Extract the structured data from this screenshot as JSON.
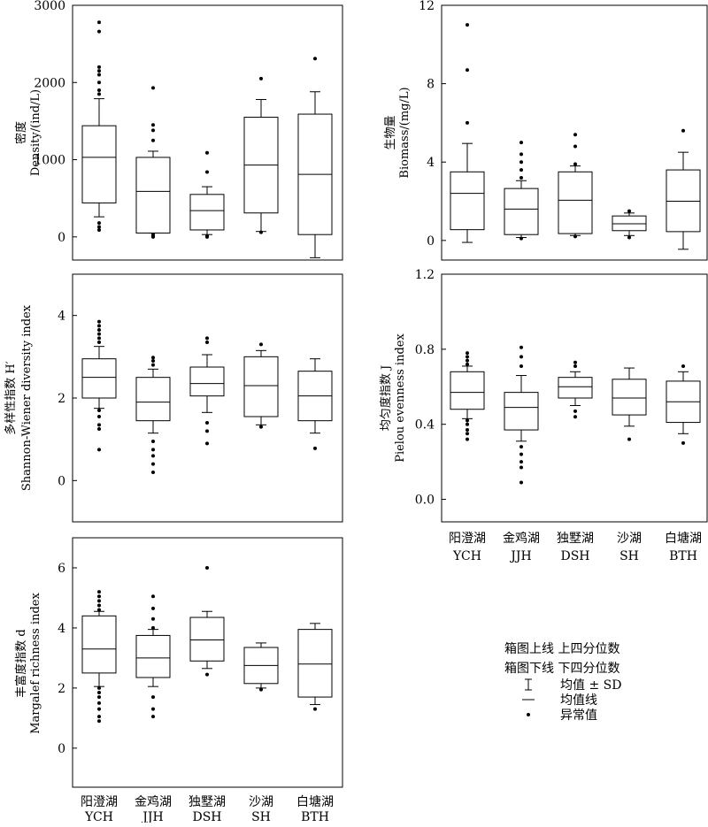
{
  "chart_data": [
    {
      "type": "boxplot",
      "id": "density",
      "ylabel_cn": "密度",
      "ylabel_en": "Density/(ind/L)",
      "ylim": [
        -300,
        3000
      ],
      "yticks": [
        "0",
        "1000",
        "2000",
        "3000"
      ],
      "ytick_values": [
        0,
        1000,
        2000,
        3000
      ],
      "categories": [
        "YCH",
        "JJH",
        "DSH",
        "SH",
        "BTH"
      ],
      "boxes": [
        {
          "q1": 440,
          "median": 1030,
          "q3": 1440,
          "lo": 260,
          "hi": 1790,
          "outliers": [
            90,
            130,
            180,
            1850,
            1900,
            2000,
            2100,
            2150,
            2200,
            2660,
            2780
          ]
        },
        {
          "q1": 50,
          "median": 590,
          "q3": 1030,
          "lo": 50,
          "hi": 1110,
          "outliers": [
            0,
            10,
            30,
            1250,
            1380,
            1450,
            1930
          ]
        },
        {
          "q1": 90,
          "median": 340,
          "q3": 550,
          "lo": 30,
          "hi": 650,
          "outliers": [
            0,
            10,
            840,
            1090
          ]
        },
        {
          "q1": 310,
          "median": 930,
          "q3": 1550,
          "lo": 70,
          "hi": 1780,
          "outliers": [
            60,
            2050
          ]
        },
        {
          "q1": 30,
          "median": 810,
          "q3": 1590,
          "lo": -270,
          "hi": 1880,
          "outliers": [
            2310
          ]
        }
      ]
    },
    {
      "type": "boxplot",
      "id": "biomass",
      "ylabel_cn": "生物量",
      "ylabel_en": "Biomass/(mg/L)",
      "ylim": [
        -1,
        12
      ],
      "yticks": [
        "0",
        "4",
        "8",
        "12"
      ],
      "ytick_values": [
        0,
        4,
        8,
        12
      ],
      "categories": [
        "YCH",
        "JJH",
        "DSH",
        "SH",
        "BTH"
      ],
      "boxes": [
        {
          "q1": 0.55,
          "median": 2.4,
          "q3": 3.5,
          "lo": -0.1,
          "hi": 4.95,
          "outliers": [
            6.0,
            8.7,
            11.0
          ]
        },
        {
          "q1": 0.3,
          "median": 1.6,
          "q3": 2.65,
          "lo": 0.15,
          "hi": 3.05,
          "outliers": [
            0.1,
            3.2,
            3.6,
            4.0,
            4.4,
            5.0
          ]
        },
        {
          "q1": 0.35,
          "median": 2.05,
          "q3": 3.5,
          "lo": 0.25,
          "hi": 3.8,
          "outliers": [
            0.2,
            3.9,
            4.8,
            5.4
          ]
        },
        {
          "q1": 0.5,
          "median": 0.85,
          "q3": 1.25,
          "lo": 0.25,
          "hi": 1.4,
          "outliers": [
            0.15,
            1.5
          ]
        },
        {
          "q1": 0.45,
          "median": 2.0,
          "q3": 3.6,
          "lo": -0.45,
          "hi": 4.5,
          "outliers": [
            5.6
          ]
        }
      ]
    },
    {
      "type": "boxplot",
      "id": "shannon",
      "ylabel_cn": "多样性指数 H′",
      "ylabel_en": "Shannon-Wiener diversity index",
      "ylim": [
        -1,
        5
      ],
      "yticks": [
        "0",
        "2",
        "4"
      ],
      "ytick_values": [
        0,
        2,
        4
      ],
      "categories": [
        "YCH",
        "JJH",
        "DSH",
        "SH",
        "BTH"
      ],
      "boxes": [
        {
          "q1": 2.0,
          "median": 2.5,
          "q3": 2.95,
          "lo": 1.75,
          "hi": 3.25,
          "outliers": [
            0.75,
            1.25,
            1.35,
            1.55,
            1.7,
            3.35,
            3.45,
            3.55,
            3.65,
            3.75,
            3.85
          ]
        },
        {
          "q1": 1.45,
          "median": 1.9,
          "q3": 2.5,
          "lo": 1.15,
          "hi": 2.7,
          "outliers": [
            0.2,
            0.4,
            0.6,
            0.75,
            0.95,
            2.8,
            2.9,
            2.98
          ]
        },
        {
          "q1": 2.05,
          "median": 2.35,
          "q3": 2.75,
          "lo": 1.65,
          "hi": 3.05,
          "outliers": [
            0.9,
            1.2,
            1.4,
            3.35,
            3.45
          ]
        },
        {
          "q1": 1.55,
          "median": 2.3,
          "q3": 3.0,
          "lo": 1.35,
          "hi": 3.15,
          "outliers": [
            1.3,
            3.3
          ]
        },
        {
          "q1": 1.45,
          "median": 2.05,
          "q3": 2.65,
          "lo": 1.15,
          "hi": 2.95,
          "outliers": [
            0.78
          ]
        }
      ]
    },
    {
      "type": "boxplot",
      "id": "pielou",
      "ylabel_cn": "均匀度指数 J",
      "ylabel_en": "Pielou evenness index",
      "ylim": [
        -0.12,
        1.2
      ],
      "yticks": [
        "0.0",
        "0.4",
        "0.8",
        "1.2"
      ],
      "ytick_values": [
        0,
        0.4,
        0.8,
        1.2
      ],
      "categories": [
        "YCH",
        "JJH",
        "DSH",
        "SH",
        "BTH"
      ],
      "boxes": [
        {
          "q1": 0.48,
          "median": 0.57,
          "q3": 0.68,
          "lo": 0.43,
          "hi": 0.71,
          "outliers": [
            0.32,
            0.35,
            0.37,
            0.4,
            0.42,
            0.72,
            0.74,
            0.76,
            0.78
          ]
        },
        {
          "q1": 0.37,
          "median": 0.49,
          "q3": 0.57,
          "lo": 0.31,
          "hi": 0.66,
          "outliers": [
            0.09,
            0.17,
            0.2,
            0.24,
            0.28,
            0.71,
            0.76,
            0.81
          ]
        },
        {
          "q1": 0.54,
          "median": 0.6,
          "q3": 0.65,
          "lo": 0.5,
          "hi": 0.68,
          "outliers": [
            0.44,
            0.47,
            0.71,
            0.73
          ]
        },
        {
          "q1": 0.45,
          "median": 0.54,
          "q3": 0.64,
          "lo": 0.39,
          "hi": 0.7,
          "outliers": [
            0.32
          ]
        },
        {
          "q1": 0.41,
          "median": 0.52,
          "q3": 0.63,
          "lo": 0.35,
          "hi": 0.68,
          "outliers": [
            0.3,
            0.71
          ]
        }
      ]
    },
    {
      "type": "boxplot",
      "id": "margalef",
      "ylabel_cn": "丰富度指数 d",
      "ylabel_en": "Margalef richness index",
      "ylim": [
        -1.3,
        7
      ],
      "yticks": [
        "0",
        "2",
        "4",
        "6"
      ],
      "ytick_values": [
        0,
        2,
        4,
        6
      ],
      "categories": [
        "YCH",
        "JJH",
        "DSH",
        "SH",
        "BTH"
      ],
      "boxes": [
        {
          "q1": 2.5,
          "median": 3.3,
          "q3": 4.4,
          "lo": 2.05,
          "hi": 4.55,
          "outliers": [
            0.9,
            1.05,
            1.3,
            1.5,
            1.7,
            1.85,
            2.0,
            4.6,
            4.75,
            4.9,
            5.05,
            5.2
          ]
        },
        {
          "q1": 2.35,
          "median": 3.0,
          "q3": 3.75,
          "lo": 2.05,
          "hi": 3.95,
          "outliers": [
            1.05,
            1.3,
            1.7,
            4.0,
            4.3,
            4.65,
            5.05
          ]
        },
        {
          "q1": 2.9,
          "median": 3.6,
          "q3": 4.35,
          "lo": 2.65,
          "hi": 4.55,
          "outliers": [
            2.45,
            6.0
          ]
        },
        {
          "q1": 2.15,
          "median": 2.75,
          "q3": 3.35,
          "lo": 2.0,
          "hi": 3.5,
          "outliers": [
            1.95
          ]
        },
        {
          "q1": 1.7,
          "median": 2.8,
          "q3": 3.95,
          "lo": 1.45,
          "hi": 4.15,
          "outliers": [
            1.3
          ]
        }
      ]
    }
  ],
  "xaxis": {
    "cn": [
      "阳澄湖",
      "金鸡湖",
      "独墅湖",
      "沙湖",
      "白塘湖"
    ],
    "en": [
      "YCH",
      "JJH",
      "DSH",
      "SH",
      "BTH"
    ]
  },
  "legend": {
    "line1": "箱图上线 上四分位数",
    "line2": "箱图下线 下四分位数",
    "mean_sd": "均值 ± SD",
    "mean_line": "均值线",
    "outlier": "异常值"
  }
}
